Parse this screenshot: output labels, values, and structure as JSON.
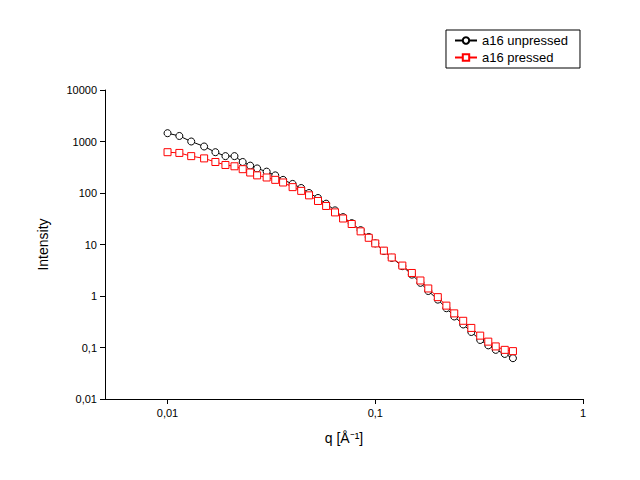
{
  "chart_data": {
    "type": "line",
    "x_label": "q [Å⁻¹]",
    "y_label": "Intensity",
    "log": true,
    "grid": false,
    "legend": "upper right",
    "xlim": [
      0.005,
      1
    ],
    "xticks": [
      {
        "value": 0.01,
        "label": "0,01"
      },
      {
        "value": 0.1,
        "label": "0,1"
      },
      1
    ],
    "ylim": [
      0.01,
      10000
    ],
    "yticks": [
      {
        "value": 0.01,
        "label": "0,01"
      },
      {
        "value": 0.1,
        "label": "0,1"
      },
      1,
      10,
      100,
      1000,
      10000
    ],
    "x": [
      0.01,
      0.0114,
      0.013,
      0.015,
      0.017,
      0.019,
      0.021,
      0.023,
      0.025,
      0.027,
      0.03,
      0.033,
      0.036,
      0.04,
      0.044,
      0.048,
      0.053,
      0.058,
      0.064,
      0.07,
      0.077,
      0.085,
      0.093,
      0.1,
      0.11,
      0.12,
      0.135,
      0.15,
      0.165,
      0.18,
      0.2,
      0.22,
      0.24,
      0.265,
      0.29,
      0.32,
      0.35,
      0.38,
      0.42,
      0.46
    ],
    "series": [
      {
        "name": "a16 unpressed",
        "color": "#000000",
        "marker": "circle",
        "line_style": "solid",
        "values": [
          1450,
          1280,
          1000,
          800,
          620,
          520,
          520,
          400,
          340,
          300,
          260,
          220,
          180,
          150,
          125,
          100,
          80,
          62,
          46,
          34,
          26,
          19,
          14,
          10.5,
          7.5,
          5.5,
          3.8,
          2.6,
          1.8,
          1.25,
          0.85,
          0.58,
          0.4,
          0.28,
          0.2,
          0.14,
          0.11,
          0.09,
          0.075,
          0.062
        ]
      },
      {
        "name": "a16 pressed",
        "color": "#ff0000",
        "marker": "square",
        "line_style": "solid",
        "values": [
          620,
          600,
          520,
          470,
          400,
          350,
          330,
          290,
          250,
          220,
          200,
          180,
          160,
          130,
          110,
          90,
          70,
          56,
          42,
          32,
          25,
          18,
          13.5,
          10.5,
          7.6,
          5.6,
          3.9,
          2.8,
          2.0,
          1.4,
          0.95,
          0.65,
          0.46,
          0.33,
          0.24,
          0.17,
          0.13,
          0.105,
          0.09,
          0.085
        ]
      }
    ]
  }
}
